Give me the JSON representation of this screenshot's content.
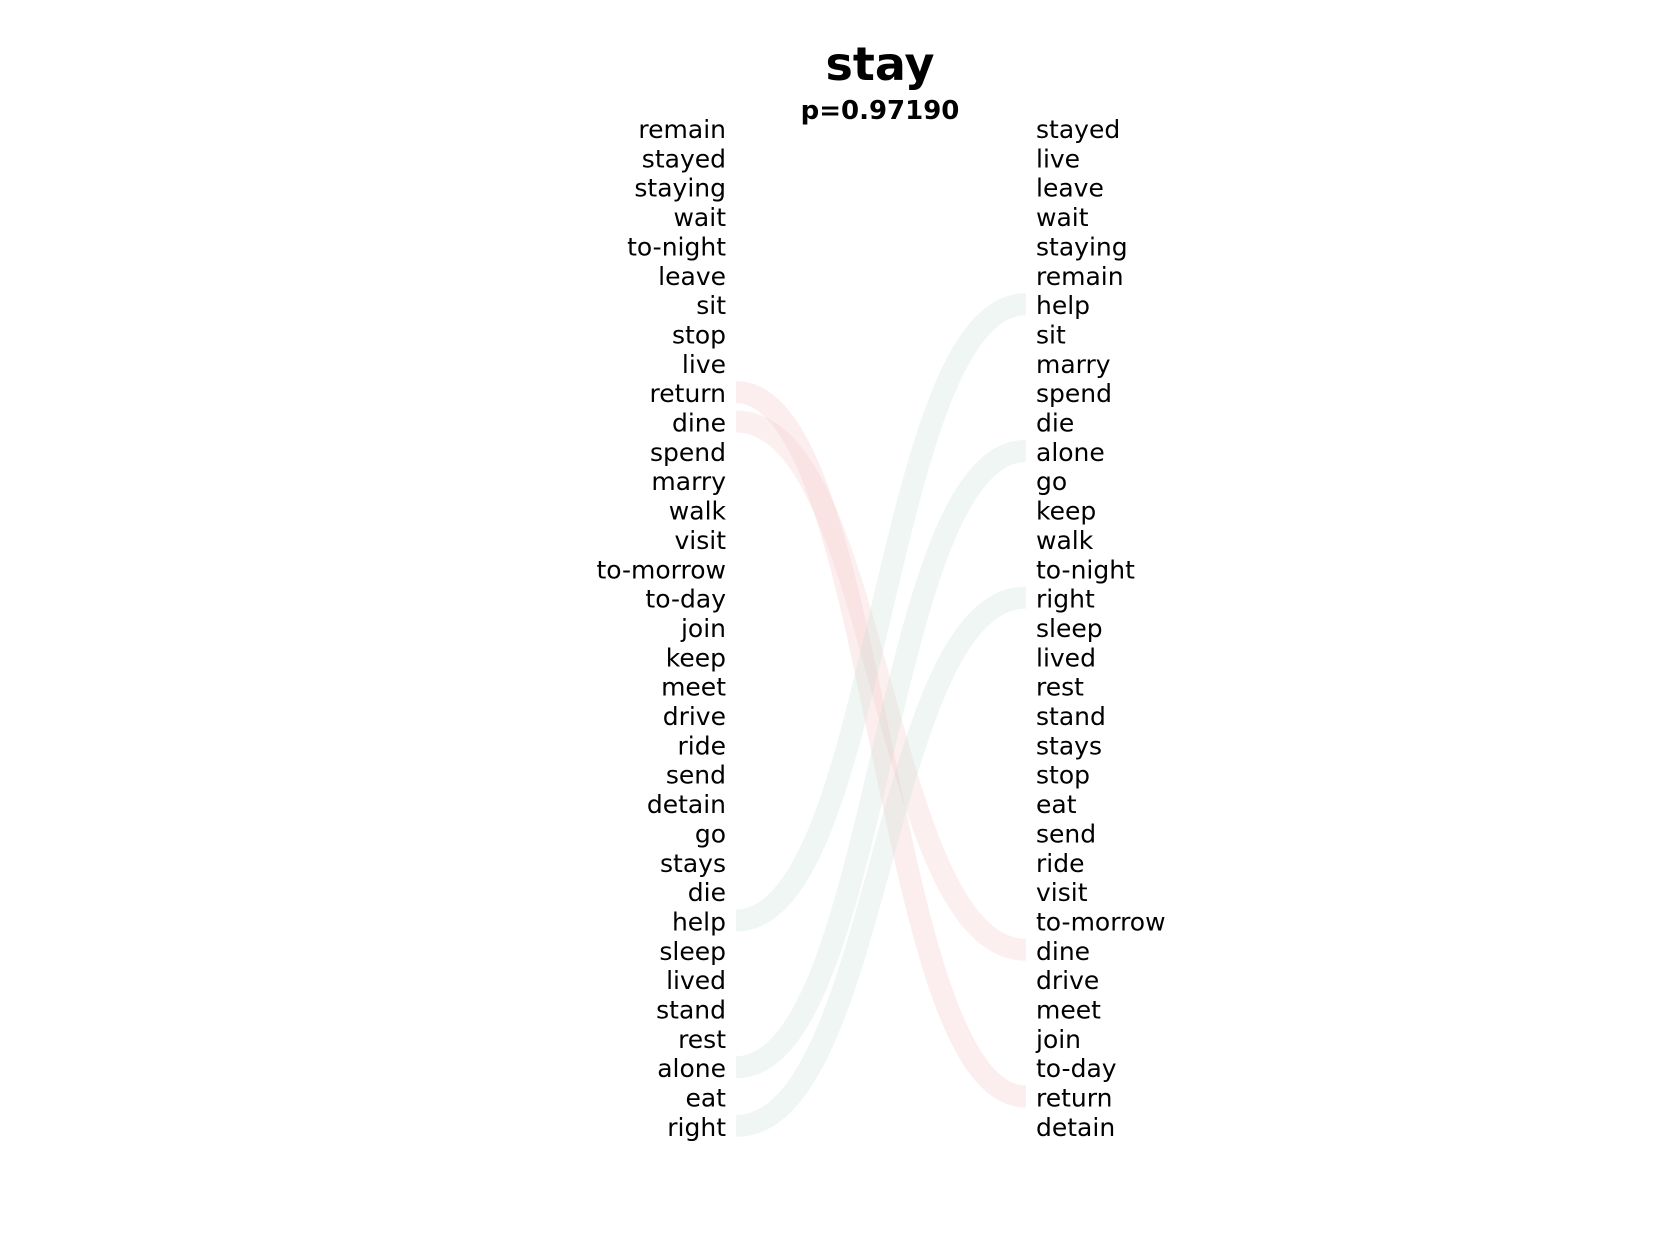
{
  "chart_data": {
    "type": "bump",
    "title": "stay",
    "subtitle": "p=0.97190",
    "left_words": [
      "remain",
      "stayed",
      "staying",
      "wait",
      "to-night",
      "leave",
      "sit",
      "stop",
      "live",
      "return",
      "dine",
      "spend",
      "marry",
      "walk",
      "visit",
      "to-morrow",
      "to-day",
      "join",
      "keep",
      "meet",
      "drive",
      "ride",
      "send",
      "detain",
      "go",
      "stays",
      "die",
      "help",
      "sleep",
      "lived",
      "stand",
      "rest",
      "alone",
      "eat",
      "right"
    ],
    "right_words": [
      "stayed",
      "live",
      "leave",
      "wait",
      "staying",
      "remain",
      "help",
      "sit",
      "marry",
      "spend",
      "die",
      "alone",
      "go",
      "keep",
      "walk",
      "to-night",
      "right",
      "sleep",
      "lived",
      "rest",
      "stand",
      "stays",
      "stop",
      "eat",
      "send",
      "ride",
      "visit",
      "to-morrow",
      "dine",
      "drive",
      "meet",
      "join",
      "to-day",
      "return",
      "detain"
    ],
    "links": [
      {
        "word": "return",
        "color": "#f4c7c7"
      },
      {
        "word": "dine",
        "color": "#f4c9c9"
      },
      {
        "word": "help",
        "color": "#c9e2d6"
      },
      {
        "word": "alone",
        "color": "#c9e2d6"
      },
      {
        "word": "right",
        "color": "#c9e2d6"
      }
    ]
  }
}
